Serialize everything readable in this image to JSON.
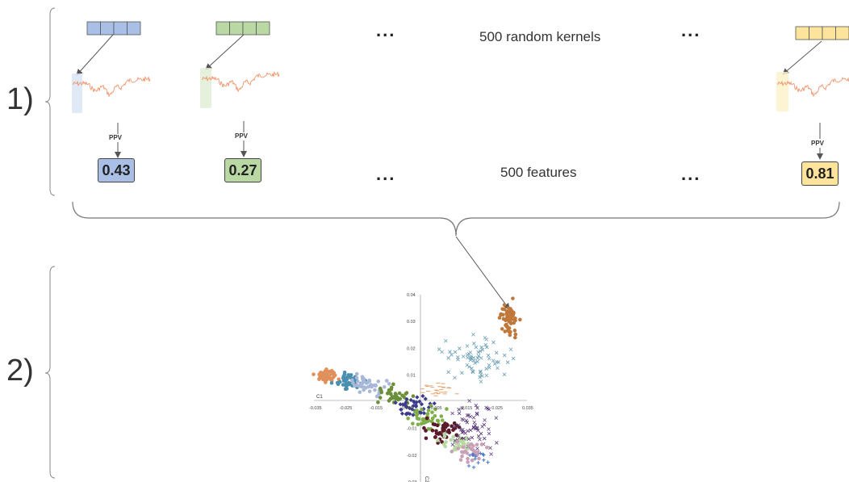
{
  "steps": {
    "step1_label": "1)",
    "step2_label": "2)"
  },
  "captions": {
    "kernels": "500 random kernels",
    "features": "500 features",
    "ellipsis": "..."
  },
  "kernels": [
    {
      "color": "#a9bfe6",
      "highlight": "#dbe5f5",
      "ppv_label": "PPV",
      "feature_value": "0.43"
    },
    {
      "color": "#b9d8a4",
      "highlight": "#e1efd6",
      "ppv_label": "PPV",
      "feature_value": "0.27"
    },
    {
      "color": "#fce49c",
      "highlight": "#fdf2cc",
      "ppv_label": "PPV",
      "feature_value": "0.81"
    }
  ],
  "colors": {
    "signal": "#f08a5d",
    "brace": "#777777",
    "arrow": "#555555"
  },
  "scatter": {
    "xlabel": "C1",
    "ylabel": "C2",
    "x_ticks": [
      "-0.035",
      "-0.025",
      "-0.015",
      "-0.005",
      "0.005",
      "0.015",
      "0.025",
      "0.035"
    ],
    "y_ticks": [
      "0.04",
      "0.03",
      "0.02",
      "0.01",
      "-0.01",
      "-0.02",
      "-0.03"
    ],
    "clusters": [
      {
        "color": "#c0783a",
        "marker": "circle",
        "cx": 0.029,
        "cy": 0.031,
        "sx": 0.0015,
        "sy": 0.0028,
        "n": 60
      },
      {
        "color": "#6a9fb5",
        "marker": "x",
        "cx": 0.018,
        "cy": 0.016,
        "sx": 0.005,
        "sy": 0.004,
        "n": 70
      },
      {
        "color": "#e0905a",
        "marker": "circle",
        "cx": -0.031,
        "cy": 0.0095,
        "sx": 0.0016,
        "sy": 0.0012,
        "n": 45
      },
      {
        "color": "#4a8fb0",
        "marker": "circle",
        "cx": -0.024,
        "cy": 0.0075,
        "sx": 0.0022,
        "sy": 0.0014,
        "n": 45
      },
      {
        "color": "#a8b8d8",
        "marker": "circle",
        "cx": -0.017,
        "cy": 0.006,
        "sx": 0.003,
        "sy": 0.0018,
        "n": 45
      },
      {
        "color": "#6b8f3a",
        "marker": "circle",
        "cx": -0.009,
        "cy": 0.0025,
        "sx": 0.0025,
        "sy": 0.0018,
        "n": 35
      },
      {
        "color": "#e6a06a",
        "marker": "dash",
        "cx": 0.0055,
        "cy": 0.0045,
        "sx": 0.0035,
        "sy": 0.0012,
        "n": 25
      },
      {
        "color": "#3c3c8c",
        "marker": "diamond",
        "cx": -0.002,
        "cy": -0.002,
        "sx": 0.0028,
        "sy": 0.002,
        "n": 40
      },
      {
        "color": "#7fae4a",
        "marker": "circle",
        "cx": 0.002,
        "cy": -0.006,
        "sx": 0.0025,
        "sy": 0.0018,
        "n": 40
      },
      {
        "color": "#5a1a2a",
        "marker": "circle",
        "cx": 0.007,
        "cy": -0.011,
        "sx": 0.0028,
        "sy": 0.0018,
        "n": 50
      },
      {
        "color": "#b9d8a4",
        "marker": "circle",
        "cx": 0.012,
        "cy": -0.015,
        "sx": 0.0022,
        "sy": 0.0016,
        "n": 30
      },
      {
        "color": "#5a3a7a",
        "marker": "x",
        "cx": 0.017,
        "cy": -0.009,
        "sx": 0.0035,
        "sy": 0.005,
        "n": 60
      },
      {
        "color": "#c9a0b8",
        "marker": "circle",
        "cx": 0.016,
        "cy": -0.018,
        "sx": 0.0025,
        "sy": 0.0018,
        "n": 30
      },
      {
        "color": "#4a78c8",
        "marker": "plus",
        "cx": 0.019,
        "cy": -0.021,
        "sx": 0.0015,
        "sy": 0.0012,
        "n": 14
      }
    ]
  }
}
